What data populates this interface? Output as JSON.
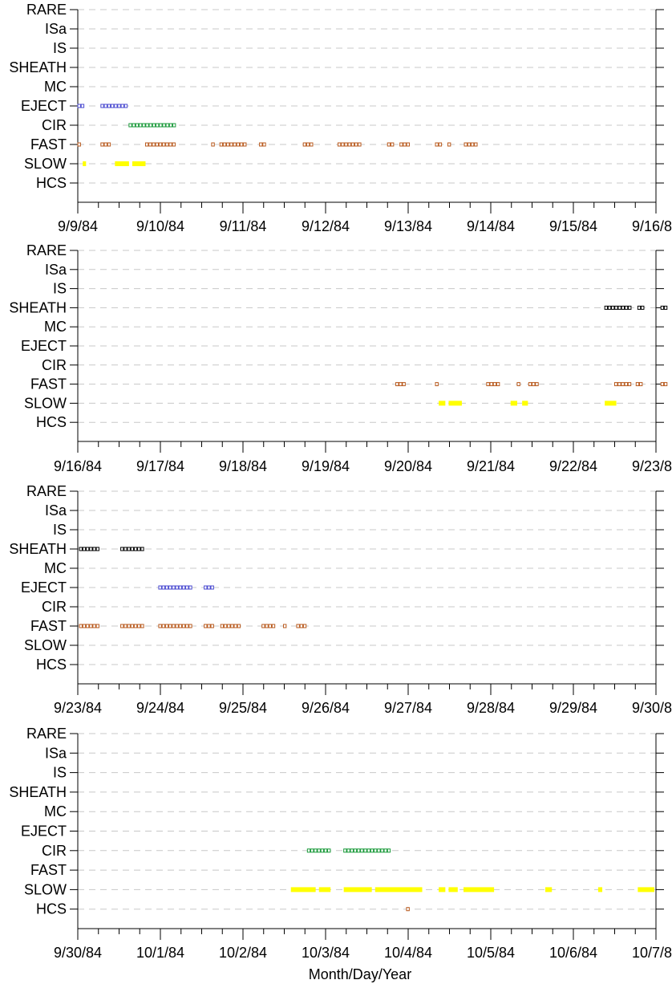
{
  "chart_data": {
    "type": "scatter",
    "categories": [
      "RARE",
      "ISa",
      "IS",
      "SHEATH",
      "MC",
      "EJECT",
      "CIR",
      "FAST",
      "SLOW",
      "HCS"
    ],
    "xlabel": "Month/Day/Year",
    "grid": true,
    "series_colors": {
      "SHEATH": "#000000",
      "EJECT": "#4a4ad0",
      "CIR": "#1a9a3a",
      "FAST": "#b85a1e",
      "SLOW": "#ffff00",
      "HCS": "#b85a1e"
    },
    "panels": [
      {
        "x_ticks": [
          "9/9/84",
          "9/10/84",
          "9/11/84",
          "9/12/84",
          "9/13/84",
          "9/14/84",
          "9/15/84",
          "9/16/84"
        ],
        "x_range_days": [
          0,
          7
        ],
        "events": [
          {
            "category": "EJECT",
            "start": 0.0,
            "end": 0.1
          },
          {
            "category": "EJECT",
            "start": 0.28,
            "end": 0.6
          },
          {
            "category": "CIR",
            "start": 0.62,
            "end": 1.18
          },
          {
            "category": "FAST",
            "start": 0.0,
            "end": 0.06
          },
          {
            "category": "FAST",
            "start": 0.28,
            "end": 0.42
          },
          {
            "category": "FAST",
            "start": 0.82,
            "end": 1.2
          },
          {
            "category": "FAST",
            "start": 1.62,
            "end": 1.65
          },
          {
            "category": "FAST",
            "start": 1.72,
            "end": 2.03
          },
          {
            "category": "FAST",
            "start": 2.2,
            "end": 2.27
          },
          {
            "category": "FAST",
            "start": 2.73,
            "end": 2.85
          },
          {
            "category": "FAST",
            "start": 3.15,
            "end": 3.45
          },
          {
            "category": "FAST",
            "start": 3.75,
            "end": 3.82
          },
          {
            "category": "FAST",
            "start": 3.9,
            "end": 4.02
          },
          {
            "category": "FAST",
            "start": 4.33,
            "end": 4.42
          },
          {
            "category": "FAST",
            "start": 4.48,
            "end": 4.51
          },
          {
            "category": "FAST",
            "start": 4.68,
            "end": 4.85
          },
          {
            "category": "SLOW",
            "start": 0.06,
            "end": 0.1
          },
          {
            "category": "SLOW",
            "start": 0.45,
            "end": 0.62
          },
          {
            "category": "SLOW",
            "start": 0.66,
            "end": 0.82
          }
        ]
      },
      {
        "x_ticks": [
          "9/16/84",
          "9/17/84",
          "9/18/84",
          "9/19/84",
          "9/20/84",
          "9/21/84",
          "9/22/84",
          "9/23/84"
        ],
        "x_range_days": [
          0,
          7
        ],
        "events": [
          {
            "category": "SHEATH",
            "start": 6.38,
            "end": 6.72
          },
          {
            "category": "SHEATH",
            "start": 6.78,
            "end": 6.86
          },
          {
            "category": "SHEATH",
            "start": 7.06,
            "end": 7.16
          },
          {
            "category": "FAST",
            "start": 3.85,
            "end": 3.98
          },
          {
            "category": "FAST",
            "start": 4.33,
            "end": 4.36
          },
          {
            "category": "FAST",
            "start": 4.95,
            "end": 5.12
          },
          {
            "category": "FAST",
            "start": 5.32,
            "end": 5.35
          },
          {
            "category": "FAST",
            "start": 5.46,
            "end": 5.57
          },
          {
            "category": "FAST",
            "start": 6.5,
            "end": 6.72
          },
          {
            "category": "FAST",
            "start": 6.76,
            "end": 6.84
          },
          {
            "category": "FAST",
            "start": 7.06,
            "end": 7.16
          },
          {
            "category": "SLOW",
            "start": 4.37,
            "end": 4.45
          },
          {
            "category": "SLOW",
            "start": 4.49,
            "end": 4.65
          },
          {
            "category": "SLOW",
            "start": 5.24,
            "end": 5.32
          },
          {
            "category": "SLOW",
            "start": 5.38,
            "end": 5.45
          },
          {
            "category": "SLOW",
            "start": 6.38,
            "end": 6.52
          }
        ]
      },
      {
        "x_ticks": [
          "9/23/84",
          "9/24/84",
          "9/25/84",
          "9/26/84",
          "9/27/84",
          "9/28/84",
          "9/29/84",
          "9/30/84"
        ],
        "x_range_days": [
          0,
          7
        ],
        "events": [
          {
            "category": "SHEATH",
            "start": 0.02,
            "end": 0.27
          },
          {
            "category": "SHEATH",
            "start": 0.52,
            "end": 0.82
          },
          {
            "category": "EJECT",
            "start": 0.98,
            "end": 1.4
          },
          {
            "category": "EJECT",
            "start": 1.53,
            "end": 1.64
          },
          {
            "category": "FAST",
            "start": 0.02,
            "end": 0.27
          },
          {
            "category": "FAST",
            "start": 0.52,
            "end": 0.82
          },
          {
            "category": "FAST",
            "start": 0.98,
            "end": 1.4
          },
          {
            "category": "FAST",
            "start": 1.53,
            "end": 1.64
          },
          {
            "category": "FAST",
            "start": 1.73,
            "end": 1.98
          },
          {
            "category": "FAST",
            "start": 2.23,
            "end": 2.4
          },
          {
            "category": "FAST",
            "start": 2.49,
            "end": 2.52
          },
          {
            "category": "FAST",
            "start": 2.65,
            "end": 2.77
          }
        ]
      },
      {
        "x_ticks": [
          "9/30/84",
          "10/1/84",
          "10/2/84",
          "10/3/84",
          "10/4/84",
          "10/5/84",
          "10/6/84",
          "10/7/84"
        ],
        "x_range_days": [
          0,
          7
        ],
        "events": [
          {
            "category": "CIR",
            "start": 2.78,
            "end": 3.05
          },
          {
            "category": "CIR",
            "start": 3.22,
            "end": 3.8
          },
          {
            "category": "SLOW",
            "start": 2.58,
            "end": 2.88
          },
          {
            "category": "SLOW",
            "start": 2.92,
            "end": 3.06
          },
          {
            "category": "SLOW",
            "start": 3.22,
            "end": 3.56
          },
          {
            "category": "SLOW",
            "start": 3.6,
            "end": 4.17
          },
          {
            "category": "SLOW",
            "start": 4.37,
            "end": 4.45
          },
          {
            "category": "SLOW",
            "start": 4.49,
            "end": 4.6
          },
          {
            "category": "SLOW",
            "start": 4.67,
            "end": 5.04
          },
          {
            "category": "SLOW",
            "start": 5.66,
            "end": 5.74
          },
          {
            "category": "SLOW",
            "start": 6.3,
            "end": 6.35
          },
          {
            "category": "SLOW",
            "start": 6.78,
            "end": 6.98
          },
          {
            "category": "HCS",
            "start": 3.98,
            "end": 4.02
          }
        ]
      }
    ]
  }
}
